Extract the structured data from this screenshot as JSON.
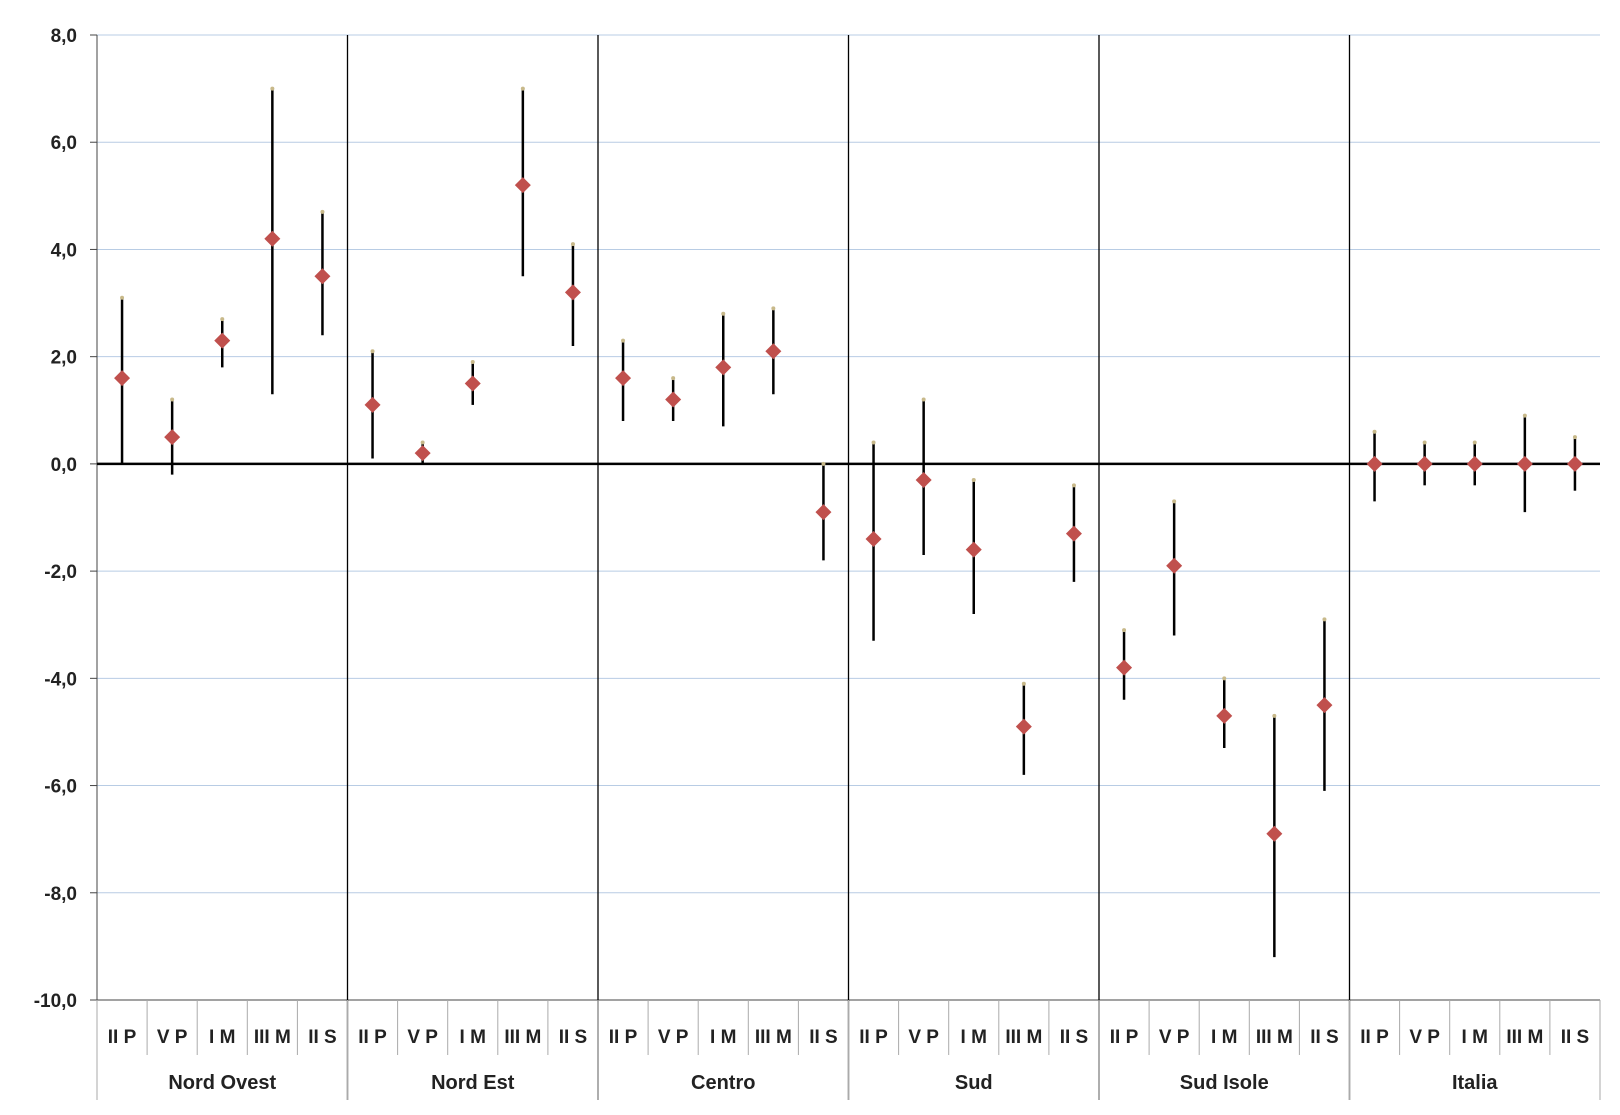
{
  "chart_data": {
    "type": "scatter",
    "title": "",
    "xlabel": "",
    "ylabel": "",
    "ylim": [
      -10,
      8
    ],
    "yticks": [
      "8,0",
      "6,0",
      "4,0",
      "2,0",
      "0,0",
      "-2,0",
      "-4,0",
      "-6,0",
      "-8,0",
      "-10,0"
    ],
    "grid": true,
    "legend": "none",
    "colors": {
      "marker": "#c0504d",
      "errorbar": "#000000",
      "grid": "#b8cce4",
      "axis": "#000000"
    },
    "categories": [
      "II P",
      "V P",
      "I M",
      "III M",
      "II S"
    ],
    "groups": [
      {
        "name": "Nord Ovest",
        "points": [
          {
            "category": "II P",
            "value": 1.6,
            "low": 0.0,
            "high": 3.1
          },
          {
            "category": "V P",
            "value": 0.5,
            "low": -0.2,
            "high": 1.2
          },
          {
            "category": "I M",
            "value": 2.3,
            "low": 1.8,
            "high": 2.7
          },
          {
            "category": "III M",
            "value": 4.2,
            "low": 1.3,
            "high": 7.0
          },
          {
            "category": "II S",
            "value": 3.5,
            "low": 2.4,
            "high": 4.7
          }
        ]
      },
      {
        "name": "Nord Est",
        "points": [
          {
            "category": "II P",
            "value": 1.1,
            "low": 0.1,
            "high": 2.1
          },
          {
            "category": "V P",
            "value": 0.2,
            "low": 0.0,
            "high": 0.4
          },
          {
            "category": "I M",
            "value": 1.5,
            "low": 1.1,
            "high": 1.9
          },
          {
            "category": "III M",
            "value": 5.2,
            "low": 3.5,
            "high": 7.0
          },
          {
            "category": "II S",
            "value": 3.2,
            "low": 2.2,
            "high": 4.1
          }
        ]
      },
      {
        "name": "Centro",
        "points": [
          {
            "category": "II P",
            "value": 1.6,
            "low": 0.8,
            "high": 2.3
          },
          {
            "category": "V P",
            "value": 1.2,
            "low": 0.8,
            "high": 1.6
          },
          {
            "category": "I M",
            "value": 1.8,
            "low": 0.7,
            "high": 2.8
          },
          {
            "category": "III M",
            "value": 2.1,
            "low": 1.3,
            "high": 2.9
          },
          {
            "category": "II S",
            "value": -0.9,
            "low": -1.8,
            "high": 0.0
          }
        ]
      },
      {
        "name": "Sud",
        "points": [
          {
            "category": "II P",
            "value": -1.4,
            "low": -3.3,
            "high": 0.4
          },
          {
            "category": "V P",
            "value": -0.3,
            "low": -1.7,
            "high": 1.2
          },
          {
            "category": "I M",
            "value": -1.6,
            "low": -2.8,
            "high": -0.3
          },
          {
            "category": "III M",
            "value": -4.9,
            "low": -5.8,
            "high": -4.1
          },
          {
            "category": "II S",
            "value": -1.3,
            "low": -2.2,
            "high": -0.4
          }
        ]
      },
      {
        "name": "Sud Isole",
        "points": [
          {
            "category": "II P",
            "value": -3.8,
            "low": -4.4,
            "high": -3.1
          },
          {
            "category": "V P",
            "value": -1.9,
            "low": -3.2,
            "high": -0.7
          },
          {
            "category": "I M",
            "value": -4.7,
            "low": -5.3,
            "high": -4.0
          },
          {
            "category": "III M",
            "value": -6.9,
            "low": -9.2,
            "high": -4.7
          },
          {
            "category": "II S",
            "value": -4.5,
            "low": -6.1,
            "high": -2.9
          }
        ]
      },
      {
        "name": "Italia",
        "points": [
          {
            "category": "II P",
            "value": 0.0,
            "low": -0.7,
            "high": 0.6
          },
          {
            "category": "V P",
            "value": 0.0,
            "low": -0.4,
            "high": 0.4
          },
          {
            "category": "I M",
            "value": 0.0,
            "low": -0.4,
            "high": 0.4
          },
          {
            "category": "III M",
            "value": 0.0,
            "low": -0.9,
            "high": 0.9
          },
          {
            "category": "II S",
            "value": 0.0,
            "low": -0.5,
            "high": 0.5
          }
        ]
      }
    ]
  }
}
